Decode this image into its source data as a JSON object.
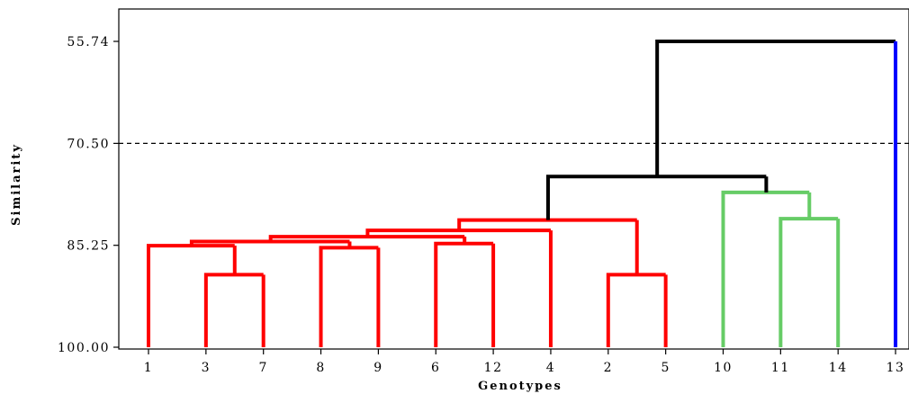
{
  "chart_data": {
    "type": "dendrogram",
    "xlabel": "Genotypes",
    "ylabel": "Similarity",
    "ylim": [
      55.74,
      100.0
    ],
    "yticks": [
      55.74,
      70.5,
      85.25,
      100.0
    ],
    "ytick_labels": [
      "55.74",
      "70.50",
      "85.25",
      "100.00"
    ],
    "cutoff_line": 70.5,
    "leaves": [
      "1",
      "3",
      "7",
      "8",
      "9",
      "6",
      "12",
      "4",
      "2",
      "5",
      "10",
      "11",
      "14",
      "13"
    ],
    "colors": {
      "red": "#ff0000",
      "green": "#66cc66",
      "blue": "#0000ff",
      "black": "#000000"
    },
    "links": [
      {
        "left": "3",
        "right": "7",
        "height": 89.5,
        "color": "red"
      },
      {
        "left": "1",
        "right": "3|7",
        "height": 85.3,
        "color": "red"
      },
      {
        "left": "8",
        "right": "9",
        "height": 85.6,
        "color": "red"
      },
      {
        "left": "1|3|7",
        "right": "8|9",
        "height": 84.7,
        "color": "red"
      },
      {
        "left": "6",
        "right": "12",
        "height": 85.0,
        "color": "red"
      },
      {
        "left": "1|3|7|8|9",
        "right": "6|12",
        "height": 84.0,
        "color": "red"
      },
      {
        "left": "1|3|7|8|9|6|12",
        "right": "4",
        "height": 83.1,
        "color": "red"
      },
      {
        "left": "2",
        "right": "5",
        "height": 89.5,
        "color": "red"
      },
      {
        "left": "1|3|7|8|9|6|12|4",
        "right": "2|5",
        "height": 81.6,
        "color": "red"
      },
      {
        "left": "11",
        "right": "14",
        "height": 81.4,
        "color": "green"
      },
      {
        "left": "10",
        "right": "11|14",
        "height": 77.6,
        "color": "green"
      },
      {
        "left": "1|3|7|8|9|6|12|4|2|5",
        "right": "10|11|14",
        "height": 75.3,
        "color": "black"
      },
      {
        "left": "1|3|7|8|9|6|12|4|2|5|10|11|14",
        "right": "13",
        "height": 55.74,
        "color": "black",
        "right_color": "blue"
      }
    ]
  }
}
